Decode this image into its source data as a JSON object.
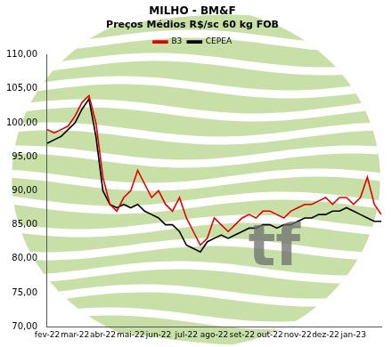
{
  "chart_data": {
    "type": "line",
    "title": "MILHO - BM&F",
    "subtitle": "Preços Médios R$/sc 60 kg FOB",
    "annotations": [
      "tf"
    ],
    "categories": [
      "fev-22",
      null,
      null,
      null,
      "mar-22",
      null,
      null,
      null,
      "abr-22",
      null,
      null,
      null,
      "mai-22",
      null,
      null,
      null,
      "jun-22",
      null,
      null,
      null,
      "jul-22",
      null,
      null,
      null,
      "ago-22",
      null,
      null,
      null,
      "set-22",
      null,
      null,
      null,
      "out-22",
      null,
      null,
      null,
      "nov-22",
      null,
      null,
      null,
      "dez-22",
      null,
      null,
      null,
      "jan-23",
      null,
      null,
      null,
      null
    ],
    "series": [
      {
        "name": "B3",
        "color": "#e00000",
        "values": [
          99,
          98.5,
          99,
          99.5,
          101,
          103,
          104,
          100,
          92,
          88,
          87,
          89,
          90,
          93,
          91,
          89,
          90,
          88,
          87,
          89,
          86,
          84,
          82,
          83,
          86,
          85,
          84,
          85,
          86,
          86.5,
          86,
          87,
          87,
          86.5,
          86,
          87,
          87.5,
          88,
          88,
          88.5,
          89,
          88,
          89,
          89,
          88,
          89,
          92,
          88,
          86.5
        ]
      },
      {
        "name": "CEPEA",
        "color": "#000000",
        "values": [
          97,
          97.5,
          98,
          99,
          100,
          102,
          103.5,
          98,
          90,
          88,
          87.5,
          88,
          87.5,
          88,
          87,
          86.5,
          86,
          85,
          85,
          84,
          82,
          81.5,
          81,
          82.5,
          83,
          83.5,
          83,
          83.5,
          84,
          84.5,
          84.5,
          85,
          85,
          84.5,
          85,
          85,
          85.5,
          86,
          86,
          86.5,
          86.5,
          87,
          87,
          87.5,
          87,
          86.5,
          86,
          85.5,
          85.5
        ]
      }
    ],
    "ylim": [
      70,
      110
    ],
    "yticks": [
      {
        "value": 70,
        "label": "70,00"
      },
      {
        "value": 75,
        "label": "75,00"
      },
      {
        "value": 80,
        "label": "80,00"
      },
      {
        "value": 85,
        "label": "85,00"
      },
      {
        "value": 90,
        "label": "90,00"
      },
      {
        "value": 95,
        "label": "95,00"
      },
      {
        "value": 100,
        "label": "100,00"
      },
      {
        "value": 105,
        "label": "105,00"
      },
      {
        "value": 110,
        "label": "110,00"
      }
    ],
    "grid": false,
    "legend": "top"
  }
}
